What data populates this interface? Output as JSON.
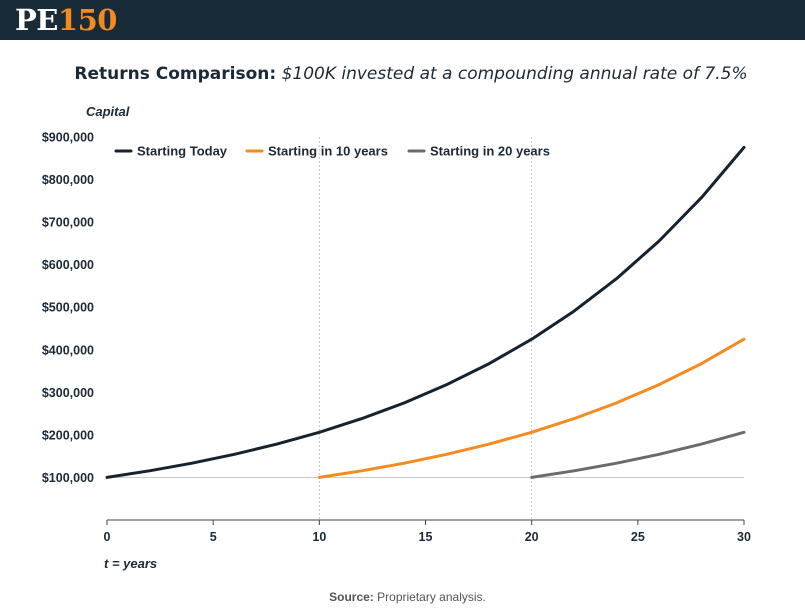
{
  "header": {
    "logo_pe": "PE",
    "logo_num": "150"
  },
  "title_bold": "Returns Comparison:",
  "title_italic": "$100K invested at a compounding annual rate of 7.5%",
  "source_label": "Source:",
  "source_text": "Proprietary analysis.",
  "colors": {
    "header_bg": "#172b39",
    "accent": "#f28a21"
  },
  "chart_data": {
    "type": "line",
    "title": "Returns Comparison: $100K invested at a compounding annual rate of 7.5%",
    "ylabel": "Capital",
    "xlabel": "t = years",
    "xlim": [
      0,
      30
    ],
    "ylim": [
      0,
      900000
    ],
    "x_ticks": [
      0,
      5,
      10,
      15,
      20,
      25,
      30
    ],
    "x_tick_labels": [
      "0",
      "5",
      "10",
      "15",
      "20",
      "25",
      "30"
    ],
    "y_ticks": [
      100000,
      200000,
      300000,
      400000,
      500000,
      600000,
      700000,
      800000,
      900000
    ],
    "y_tick_labels": [
      "$100,000",
      "$200,000",
      "$300,000",
      "$400,000",
      "$500,000",
      "$600,000",
      "$700,000",
      "$800,000",
      "$900,000"
    ],
    "vertical_guides": [
      10,
      20
    ],
    "reference_line": 100000,
    "legend_position": "top-left",
    "series": [
      {
        "name": "Starting Today",
        "color": "#15232e",
        "x": [
          0,
          2,
          4,
          6,
          8,
          10,
          12,
          14,
          16,
          18,
          20,
          22,
          24,
          26,
          28,
          30
        ],
        "values": [
          100000,
          115563,
          133547,
          154330,
          178348,
          206103,
          238177,
          275244,
          318079,
          367580,
          424785,
          490891,
          567287,
          655573,
          757598,
          875496
        ]
      },
      {
        "name": "Starting in 10 years",
        "color": "#f58b1f",
        "x": [
          10,
          12,
          14,
          16,
          18,
          20,
          22,
          24,
          26,
          28,
          30
        ],
        "values": [
          100000,
          115563,
          133547,
          154330,
          178348,
          206103,
          238177,
          275244,
          318079,
          367580,
          424785
        ]
      },
      {
        "name": "Starting in 20 years",
        "color": "#6b6b6b",
        "x": [
          20,
          22,
          24,
          26,
          28,
          30
        ],
        "values": [
          100000,
          115563,
          133547,
          154330,
          178348,
          206103
        ]
      }
    ]
  }
}
